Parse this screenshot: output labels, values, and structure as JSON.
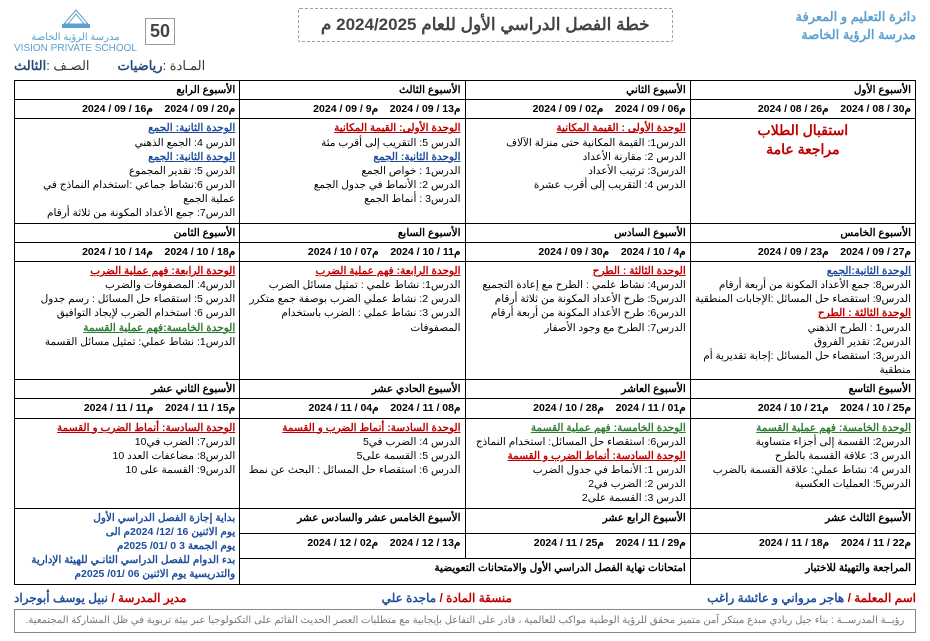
{
  "header": {
    "dept": "دائرة التعليم و المعرفة",
    "school": "مدرسة الرؤية الخاصة",
    "title": "خطة الفصل الدراسي الأول للعام 2024/2025 م",
    "fifty": "50",
    "logo_text": "مدرسة الرؤية الخاصة\nVISION PRIVATE SCHOOL"
  },
  "sub": {
    "subject_lbl": "المـادة :",
    "subject": "رياضيات",
    "grade_lbl": "الصـف :",
    "grade": "الثالث"
  },
  "weeks": [
    {
      "title": "الأسبوع الأول",
      "from": "2024 / 08 / 26م",
      "to": "2024 / 08 / 30م"
    },
    {
      "title": "الأسبوع الثاني",
      "from": "2024 / 09 / 02م",
      "to": "2024 / 09 / 06م"
    },
    {
      "title": "الأسبوع الثالث",
      "from": "2024 / 09 / 9م",
      "to": "2024 / 09 / 13م"
    },
    {
      "title": "الأسبوع الرابع",
      "from": "2024 / 09 / 16م",
      "to": "2024 / 09 / 20م"
    },
    {
      "title": "الأسبوع الخامس",
      "from": "2024 / 09 / 23م",
      "to": "2024 / 09 / 27م"
    },
    {
      "title": "الأسبوع السادس",
      "from": "2024 / 09 / 30م",
      "to": "2024 / 10 / 4م"
    },
    {
      "title": "الأسبوع السابع",
      "from": "2024 / 10 / 07م",
      "to": "2024 / 10 / 11م"
    },
    {
      "title": "الأسبوع الثامن",
      "from": "2024 / 10 / 14م",
      "to": "2024 / 10 / 18م"
    },
    {
      "title": "الأسبوع التاسع",
      "from": "2024 / 10 / 21م",
      "to": "2024 / 10 / 25م"
    },
    {
      "title": "الأسبوع العاشر",
      "from": "2024 / 10 / 28م",
      "to": "2024 / 11 / 01م"
    },
    {
      "title": "الأسبوع الحادي عشر",
      "from": "2024 / 11 / 04م",
      "to": "2024 / 11 / 08م"
    },
    {
      "title": "الأسبوع الثاني عشر",
      "from": "2024 / 11 / 11م",
      "to": "2024 / 11 / 15م"
    },
    {
      "title": "الأسبوع الثالث عشر",
      "from": "2024 / 11 / 18م",
      "to": "2024 / 11 / 22م"
    },
    {
      "title": "الأسبوع الرابع عشر",
      "from": "2024 / 11 / 25م",
      "to": "2024 / 11 / 29م"
    },
    {
      "title": "الأسبوع الخامس عشر والسادس عشر",
      "from": "2024 / 12 / 02م",
      "to": "2024 / 12 / 13م"
    }
  ],
  "cells": {
    "w1": [
      {
        "type": "big",
        "text": "استقبال الطلاب"
      },
      {
        "type": "big",
        "text": "مراجعة عامة"
      }
    ],
    "w2": [
      {
        "type": "unit",
        "cls": "u-red",
        "text": "الوحدة الأولى : القيمة المكانية"
      },
      {
        "type": "lesson",
        "text": "الدرس1: القيمة المكانية حتى منزلة الآلاف"
      },
      {
        "type": "lesson",
        "text": "الدرس 2: مقارنة الأعداد"
      },
      {
        "type": "lesson",
        "text": "الدرس3: ترتيب الأعداد"
      },
      {
        "type": "lesson",
        "text": "الدرس 4: التقريب إلى أقرب عشرة"
      }
    ],
    "w3": [
      {
        "type": "unit",
        "cls": "u-red",
        "text": "الوحدة الأولى: القيمة المكانية"
      },
      {
        "type": "lesson",
        "text": "الدرس 5: التقريب إلى أقرب مئة"
      },
      {
        "type": "unit",
        "cls": "u-blue",
        "text": "الوحدة الثانية: الجمع"
      },
      {
        "type": "lesson",
        "text": "الدرس1 : خواص الجمع"
      },
      {
        "type": "lesson",
        "text": "الدرس 2: الأنماط في جدول الجمع"
      },
      {
        "type": "lesson",
        "text": "الدرس3 : أنماط الجمع"
      }
    ],
    "w4": [
      {
        "type": "unit",
        "cls": "u-blue",
        "text": "الوحدة الثانية: الجمع"
      },
      {
        "type": "lesson",
        "text": "الدرس 4: الجمع الذهني"
      },
      {
        "type": "unit",
        "cls": "u-blue",
        "text": "الوحدة الثانية: الجمع"
      },
      {
        "type": "lesson",
        "text": "الدرس 5: تقدير المجموع"
      },
      {
        "type": "lesson",
        "text": "الدرس 6:نشاط جماعي :استخدام النماذج في عملية الجمع"
      },
      {
        "type": "lesson",
        "text": "الدرس7: جمع الأعداد المكونة من ثلاثة أرقام"
      }
    ],
    "w5": [
      {
        "type": "unit",
        "cls": "u-blue",
        "text": "الوحدة الثانية:الجمع"
      },
      {
        "type": "lesson",
        "text": "الدرس8: جمع الأعداد المكونة من أربعة أرقام"
      },
      {
        "type": "lesson",
        "text": "الدرس9: استقصاء حل المسائل :الإجابات المنطقية"
      },
      {
        "type": "unit",
        "cls": "u-red",
        "text": "الوحدة الثالثة : الطرح"
      },
      {
        "type": "lesson",
        "text": "الدرس1 : الطرح الذهني"
      },
      {
        "type": "lesson",
        "text": "الدرس2: تقدير الفروق"
      },
      {
        "type": "lesson",
        "text": "الدرس3: استقصاء حل المسائل :إجابة تقديرية أم منطقية"
      }
    ],
    "w6": [
      {
        "type": "unit",
        "cls": "u-red",
        "text": "الوحدة الثالثة : الطرح"
      },
      {
        "type": "lesson",
        "text": "الدرس4: نشاط علمي : الطرح مع إعادة التجميع"
      },
      {
        "type": "lesson",
        "text": "الدرس5: طرح الأعداد المكونة من ثلاثة أرقام"
      },
      {
        "type": "lesson",
        "text": "الدرس6: طرح الأعداد المكونة من أربعة أرقام"
      },
      {
        "type": "lesson",
        "text": "الدرس7: الطرح مع وجود الأصفار"
      }
    ],
    "w7": [
      {
        "type": "unit",
        "cls": "u-red",
        "text": "الوحدة الرابعة: فهم عملية الضرب"
      },
      {
        "type": "lesson",
        "text": "الدرس1: نشاط علمي : تمثيل مسائل الضرب"
      },
      {
        "type": "lesson",
        "text": "الدرس 2: نشاط عملي الضرب بوصفة جمع متكرر"
      },
      {
        "type": "lesson",
        "text": "الدرس 3: نشاط عملي : الضرب باستخدام المصفوفات"
      }
    ],
    "w8": [
      {
        "type": "unit",
        "cls": "u-red",
        "text": "الوحدة الرابعة: فهم عملية الضرب"
      },
      {
        "type": "lesson",
        "text": "الدرس4: المصفوفات والضرب"
      },
      {
        "type": "lesson",
        "text": "الدرس 5: استقصاء حل المسائل : رسم جدول"
      },
      {
        "type": "lesson",
        "text": "الدرس 6: استخدام الضرب لإيجاد التوافيق"
      },
      {
        "type": "unit",
        "cls": "u-green",
        "text": "الوحدة الخامسة:فهم عملية القسمة"
      },
      {
        "type": "lesson",
        "text": "الدرس1: نشاط عملي: تمثيل مسائل القسمة"
      }
    ],
    "w9": [
      {
        "type": "unit",
        "cls": "u-green",
        "text": "الوحدة الخامسة: فهم عملية القسمة"
      },
      {
        "type": "lesson",
        "text": "الدرس2: القسمة إلى أجزاء متساوية"
      },
      {
        "type": "lesson",
        "text": "الدرس 3: علاقة القسمة بالطرح"
      },
      {
        "type": "lesson",
        "text": "الدرس 4: نشاط عملي: علاقة القسمة بالضرب"
      },
      {
        "type": "lesson",
        "text": "الدرس5: العمليات العكسية"
      }
    ],
    "w10": [
      {
        "type": "unit",
        "cls": "u-green",
        "text": "الوحدة الخامسة: فهم عملية القسمة"
      },
      {
        "type": "lesson",
        "text": "الدرس6: استقصاء حل المسائل: استخدام النماذج"
      },
      {
        "type": "unit",
        "cls": "u-red",
        "text": "الوحدة السادسة: أنماط الضرب و القسمة"
      },
      {
        "type": "lesson",
        "text": "الدرس 1: الأنماط في جدول الضرب"
      },
      {
        "type": "lesson",
        "text": "الدرس 2: الضرب في2"
      },
      {
        "type": "lesson",
        "text": "الدرس 3: القسمة على2"
      }
    ],
    "w11": [
      {
        "type": "unit",
        "cls": "u-red",
        "text": "الوحدة السادسة: أنماط الضرب و القسمة"
      },
      {
        "type": "lesson",
        "text": "الدرس 4: الضرب في5"
      },
      {
        "type": "lesson",
        "text": "الدرس 5: القسمة على5"
      },
      {
        "type": "lesson",
        "text": "الدرس 6: استقصاء حل المسائل : البحث عن نمط"
      }
    ],
    "w12": [
      {
        "type": "unit",
        "cls": "u-red",
        "text": "الوحدة السادسة: أنماط الضرب و القسمة"
      },
      {
        "type": "lesson",
        "text": "الدرس7: الضرب في10"
      },
      {
        "type": "lesson",
        "text": "الدرس8: مضاعفات العدد 10"
      },
      {
        "type": "lesson",
        "text": "الدرس9: القسمة على 10"
      }
    ],
    "w13": [
      {
        "type": "plain",
        "text": "المراجعة والتهيئة للاختبار"
      }
    ],
    "w14_15": [
      {
        "type": "plain",
        "text": "امتحانات نهاية الفصل الدراسي الأول  والامتحانات التعويضية"
      }
    ],
    "holiday": [
      "بداية إجازة الفصل الدراسي الأول",
      "يوم الاثنين  16 /12/ 2024م الى",
      "يوم الجمعة 3 0 /01/ 2025م",
      "بدء الدوام للفصل الدراسي الثانـي للهيئة الإدارية",
      "والتدريسية  يوم الاثنين 06 /01/ 2025م"
    ]
  },
  "sig": {
    "teacher_k": "اسم المعلمة /",
    "teacher_v": "هاجر مرواني و عائشة راغب",
    "coord_k": "منسقة المادة /",
    "coord_v": "ماجدة علي",
    "head_k": "مدير المدرسة  /",
    "head_v": "نبيل يوسف أبوجراد"
  },
  "vision": "رؤيــة المدرســة : بناء جيل ريادي مبدع مبتكر آمن متميز محقق للرؤية الوطنية مواكب للعالمية ، قادر على التفاعل بإيجابية مع متطلبات العصر الحديث القائم على التكنولوجيا عبر بيئة تربوية في ظل المشاركة المجتمعية."
}
